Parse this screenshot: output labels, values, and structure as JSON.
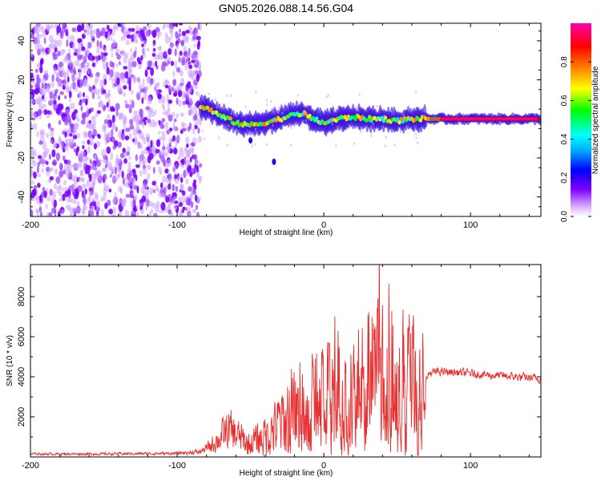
{
  "figure_title": "GN05.2026.088.14.56.G04",
  "chart_data": [
    {
      "type": "heatmap",
      "title": "",
      "xlabel": "Height of straight line (km)",
      "ylabel": "Frequency (Hz)",
      "xlim": [
        -200,
        148
      ],
      "ylim": [
        -50,
        49
      ],
      "xticks": [
        -200,
        -100,
        0,
        100
      ],
      "xtick_labels": [
        "-200",
        "-100",
        "0",
        "100"
      ],
      "yticks": [
        -40,
        -20,
        0,
        20,
        40
      ],
      "ytick_labels": [
        "-40",
        "-20",
        "0",
        "20",
        "40"
      ],
      "colorbar": {
        "label": "Normalized spectral amplitude",
        "range": [
          0,
          1
        ],
        "ticks": [
          0.0,
          0.2,
          0.4,
          0.6,
          0.8
        ],
        "tick_labels": [
          "0.0",
          "0.2",
          "0.4",
          "0.6",
          "0.8"
        ],
        "colors": [
          "#ffffff",
          "#8000ff",
          "#0000ff",
          "#00ffff",
          "#00ff00",
          "#ffff00",
          "#ff8000",
          "#ff0000",
          "#ff00aa"
        ]
      },
      "regions": {
        "noise": {
          "x": [
            -200,
            -84
          ],
          "y": [
            -50,
            49
          ],
          "amplitude": [
            0.05,
            0.3
          ]
        },
        "track": [
          {
            "x": -84,
            "y": 6
          },
          {
            "x": -78,
            "y": 5
          },
          {
            "x": -72,
            "y": 2
          },
          {
            "x": -66,
            "y": 0
          },
          {
            "x": -60,
            "y": -2
          },
          {
            "x": -54,
            "y": -3
          },
          {
            "x": -48,
            "y": -3
          },
          {
            "x": -40,
            "y": -2
          },
          {
            "x": -30,
            "y": 0
          },
          {
            "x": -20,
            "y": 2
          },
          {
            "x": -14,
            "y": 3
          },
          {
            "x": -8,
            "y": 0
          },
          {
            "x": 0,
            "y": -2
          },
          {
            "x": 10,
            "y": 0
          },
          {
            "x": 20,
            "y": 1
          },
          {
            "x": 30,
            "y": 0
          },
          {
            "x": 40,
            "y": 0
          },
          {
            "x": 50,
            "y": -1
          },
          {
            "x": 60,
            "y": 0
          },
          {
            "x": 70,
            "y": 0
          },
          {
            "x": 80,
            "y": 0
          },
          {
            "x": 100,
            "y": 0
          },
          {
            "x": 120,
            "y": 0
          },
          {
            "x": 148,
            "y": 0
          }
        ],
        "outliers": [
          {
            "x": -50,
            "y": -11
          },
          {
            "x": -34,
            "y": -22
          }
        ]
      }
    },
    {
      "type": "line",
      "title": "",
      "xlabel": "Height of straight line (km)",
      "ylabel": "SNR (10 * v/v)",
      "xlim": [
        -200,
        148
      ],
      "ylim": [
        0,
        9600
      ],
      "xticks": [
        -200,
        -100,
        0,
        100
      ],
      "xtick_labels": [
        "-200",
        "-100",
        "0",
        "100"
      ],
      "yticks": [
        2000,
        4000,
        6000,
        8000
      ],
      "ytick_labels": [
        "2000",
        "4000",
        "6000",
        "8000"
      ],
      "series": [
        {
          "name": "SNR",
          "color": "#e83030",
          "baseline": [
            [
              -200,
              150
            ],
            [
              -150,
              150
            ],
            [
              -100,
              180
            ],
            [
              -85,
              250
            ],
            [
              -78,
              500
            ],
            [
              -72,
              900
            ],
            [
              -65,
              1300
            ],
            [
              -58,
              1000
            ],
            [
              -52,
              600
            ],
            [
              -44,
              900
            ],
            [
              -36,
              1300
            ],
            [
              -28,
              1700
            ],
            [
              -20,
              2100
            ],
            [
              -12,
              2300
            ],
            [
              -4,
              2200
            ],
            [
              4,
              2400
            ],
            [
              12,
              2600
            ],
            [
              20,
              2800
            ],
            [
              30,
              3000
            ],
            [
              40,
              3200
            ],
            [
              50,
              3200
            ],
            [
              58,
              3100
            ],
            [
              65,
              3000
            ],
            [
              68,
              3600
            ],
            [
              72,
              4200
            ],
            [
              80,
              4250
            ],
            [
              95,
              4200
            ],
            [
              110,
              4100
            ],
            [
              130,
              4000
            ],
            [
              148,
              3900
            ]
          ],
          "spike_envelope": [
            [
              -200,
              120
            ],
            [
              -100,
              150
            ],
            [
              -82,
              300
            ],
            [
              -72,
              1300
            ],
            [
              -64,
              2300
            ],
            [
              -58,
              1700
            ],
            [
              -50,
              1300
            ],
            [
              -44,
              1900
            ],
            [
              -36,
              2600
            ],
            [
              -28,
              3900
            ],
            [
              -20,
              6200
            ],
            [
              -14,
              5500
            ],
            [
              -6,
              5000
            ],
            [
              2,
              5500
            ],
            [
              10,
              6300
            ],
            [
              20,
              6800
            ],
            [
              26,
              7200
            ],
            [
              32,
              7800
            ],
            [
              38,
              9600
            ],
            [
              44,
              9400
            ],
            [
              50,
              8600
            ],
            [
              56,
              8700
            ],
            [
              62,
              7900
            ],
            [
              66,
              7000
            ],
            [
              70,
              300
            ],
            [
              72,
              300
            ],
            [
              148,
              300
            ]
          ],
          "point_count": 1400
        }
      ]
    }
  ]
}
